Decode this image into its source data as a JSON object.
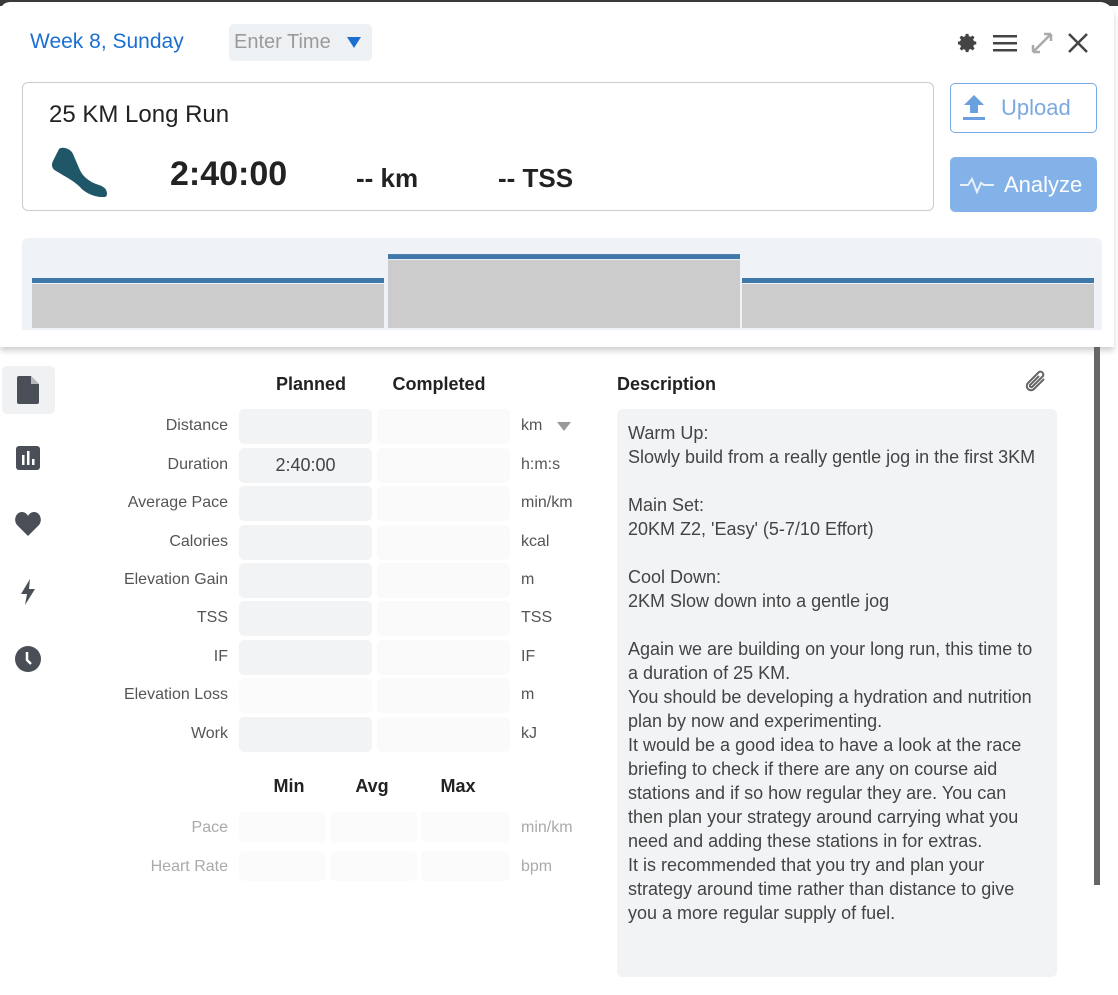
{
  "header": {
    "title": "Week 8, Sunday",
    "time_placeholder": "Enter Time",
    "icons": [
      "gear-icon",
      "menu-icon",
      "expand-icon",
      "close-icon"
    ]
  },
  "workout": {
    "title": "25 KM Long Run",
    "sport_icon": "running-shoe-icon",
    "duration": "2:40:00",
    "distance": "-- km",
    "tss": "-- TSS"
  },
  "actions": {
    "upload": "Upload",
    "analyze": "Analyze"
  },
  "profile": {
    "steps": [
      {
        "level": 0.5
      },
      {
        "level": 0.76
      },
      {
        "level": 0.5
      }
    ],
    "bar_color": "#3f78a8",
    "fill_color": "#cccccc"
  },
  "sidebar": {
    "items": [
      {
        "icon": "document-icon",
        "active": true
      },
      {
        "icon": "bar-chart-icon"
      },
      {
        "icon": "heart-icon"
      },
      {
        "icon": "lightning-icon"
      },
      {
        "icon": "clock-icon"
      }
    ]
  },
  "metrics": {
    "headers": {
      "planned": "Planned",
      "completed": "Completed"
    },
    "rows": [
      {
        "label": "Distance",
        "planned": "",
        "completed": "",
        "unit": "km"
      },
      {
        "label": "Duration",
        "planned": "2:40:00",
        "completed": "",
        "unit": "h:m:s"
      },
      {
        "label": "Average Pace",
        "planned": "",
        "completed": "",
        "unit": "min/km"
      },
      {
        "label": "Calories",
        "planned": "",
        "completed": "",
        "unit": "kcal"
      },
      {
        "label": "Elevation Gain",
        "planned": "",
        "completed": "",
        "unit": "m"
      },
      {
        "label": "TSS",
        "planned": "",
        "completed": "",
        "unit": "TSS"
      },
      {
        "label": "IF",
        "planned": "",
        "completed": "",
        "unit": "IF"
      },
      {
        "label": "Elevation Loss",
        "planned": "",
        "completed": "",
        "unit": "m"
      },
      {
        "label": "Work",
        "planned": "",
        "completed": "",
        "unit": "kJ"
      }
    ]
  },
  "ranges": {
    "headers": {
      "min": "Min",
      "avg": "Avg",
      "max": "Max"
    },
    "rows": [
      {
        "label": "Pace",
        "unit": "min/km"
      },
      {
        "label": "Heart Rate",
        "unit": "bpm"
      }
    ]
  },
  "description": {
    "title": "Description",
    "text": "Warm Up:\nSlowly build from a really gentle jog in the first 3KM\n\nMain Set:\n20KM Z2, 'Easy' (5-7/10 Effort)\n\nCool Down:\n2KM Slow down into a gentle jog\n\nAgain we are building on your long run, this time to a duration of 25 KM.\nYou should be developing a hydration and nutrition plan by now and experimenting.\nIt would be a good idea to have a look at the race briefing to check if there are any on course aid stations and if so how regular they are. You can then plan your strategy around carrying what you need and adding these stations in for extras.\nIt is recommended that you try and plan your strategy around time rather than distance to give you a more regular supply of fuel."
  }
}
